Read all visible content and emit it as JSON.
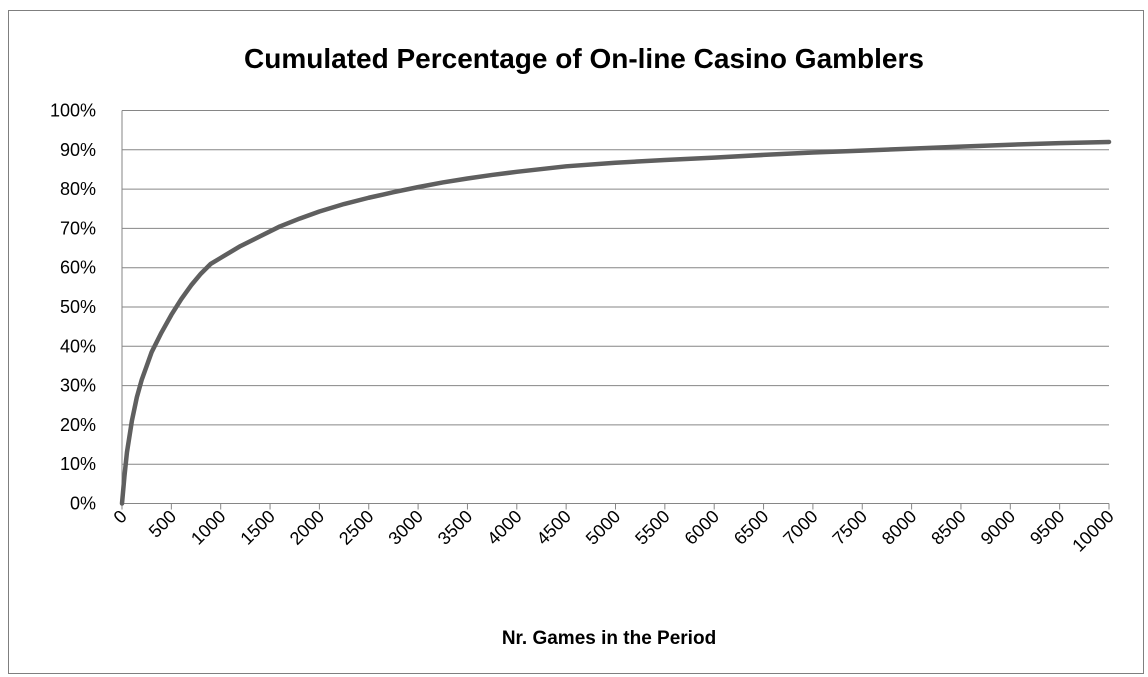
{
  "chart_data": {
    "type": "line",
    "title": "Cumulated Percentage of On-line Casino Gamblers",
    "xlabel": "Nr. Games in the Period",
    "ylabel": "",
    "xlim": [
      0,
      10000
    ],
    "ylim": [
      0,
      100
    ],
    "x_ticks": [
      "0",
      "500",
      "1000",
      "1500",
      "2000",
      "2500",
      "3000",
      "3500",
      "4000",
      "4500",
      "5000",
      "5500",
      "6000",
      "6500",
      "7000",
      "7500",
      "8000",
      "8500",
      "9000",
      "9500",
      "10000"
    ],
    "y_ticks": [
      "0%",
      "10%",
      "20%",
      "30%",
      "40%",
      "50%",
      "60%",
      "70%",
      "80%",
      "90%",
      "100%"
    ],
    "grid": true,
    "legend": "none",
    "series": [
      {
        "color": "#5f5f5f",
        "x": [
          0,
          25,
          50,
          100,
          150,
          200,
          250,
          300,
          400,
          500,
          600,
          700,
          800,
          900,
          1000,
          1200,
          1400,
          1600,
          1800,
          2000,
          2250,
          2500,
          2750,
          3000,
          3250,
          3500,
          3750,
          4000,
          4250,
          4500,
          5000,
          5500,
          6000,
          6500,
          7000,
          7500,
          8000,
          8500,
          9000,
          9500,
          10000
        ],
        "y": [
          0,
          7,
          13,
          21,
          27,
          31.5,
          35,
          38.5,
          43.5,
          48,
          52,
          55.5,
          58.5,
          61,
          62.5,
          65.5,
          68,
          70.5,
          72.5,
          74.3,
          76.2,
          77.8,
          79.2,
          80.5,
          81.7,
          82.7,
          83.6,
          84.4,
          85.1,
          85.8,
          86.7,
          87.4,
          88.0,
          88.7,
          89.3,
          89.8,
          90.3,
          90.8,
          91.3,
          91.7,
          92.0
        ]
      }
    ]
  }
}
